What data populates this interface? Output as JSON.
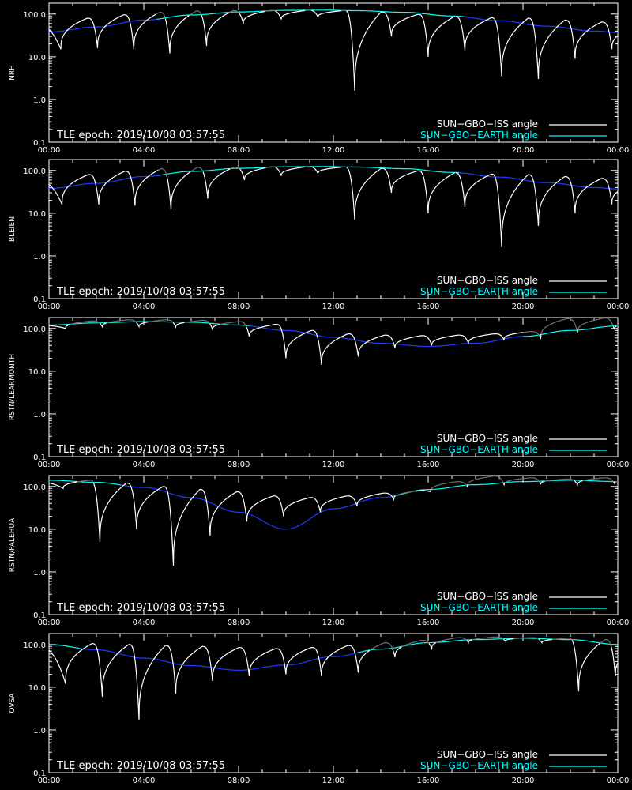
{
  "epoch_text": "TLE epoch: 2019/10/08 03:57:55",
  "legend": {
    "iss_label": "SUN−GBO−ISS angle",
    "earth_label": "SUN−GBO−EARTH angle"
  },
  "colors": {
    "background": "#000000",
    "axis": "#ffffff",
    "iss_day": "#ffffff",
    "iss_night": "#707070",
    "earth_legend": "#00ffff",
    "earth_day": "#00ffff",
    "earth_night": "#1e3cff"
  },
  "chart_data": [
    {
      "type": "line",
      "ylabel": "NRH",
      "yscale": "log",
      "ylim": [
        0.1,
        180
      ],
      "xlim_hours": [
        0,
        24
      ],
      "x_ticks": [
        "00:00",
        "04:00",
        "08:00",
        "12:00",
        "16:00",
        "20:00",
        "00:00"
      ],
      "y_ticks": [
        "0.1",
        "1.0",
        "10.0",
        "100.0"
      ],
      "series": [
        {
          "name": "SUN−GBO−EARTH angle",
          "x_hours": [
            0,
            2,
            4,
            6,
            8,
            10,
            11.5,
            13,
            15,
            17,
            19,
            21,
            23,
            24
          ],
          "y_deg": [
            38,
            50,
            72,
            95,
            112,
            122,
            124,
            120,
            110,
            90,
            70,
            52,
            40,
            37
          ],
          "visible_range_hours": [
            4.5,
            17.5
          ]
        },
        {
          "name": "SUN−GBO−ISS angle",
          "dips": [
            {
              "x_hour": 0.5,
              "min_deg": 15
            },
            {
              "x_hour": 2.05,
              "min_deg": 16
            },
            {
              "x_hour": 3.58,
              "min_deg": 15
            },
            {
              "x_hour": 5.1,
              "min_deg": 12
            },
            {
              "x_hour": 6.65,
              "min_deg": 18
            },
            {
              "x_hour": 8.2,
              "min_deg": 60
            },
            {
              "x_hour": 9.8,
              "min_deg": 75
            },
            {
              "x_hour": 11.35,
              "min_deg": 85
            },
            {
              "x_hour": 12.9,
              "min_deg": 1.6
            },
            {
              "x_hour": 14.45,
              "min_deg": 30
            },
            {
              "x_hour": 16.0,
              "min_deg": 10
            },
            {
              "x_hour": 17.55,
              "min_deg": 14
            },
            {
              "x_hour": 19.1,
              "min_deg": 3.5
            },
            {
              "x_hour": 20.65,
              "min_deg": 3
            },
            {
              "x_hour": 22.2,
              "min_deg": 9
            },
            {
              "x_hour": 23.75,
              "min_deg": 15
            }
          ],
          "peaks_deg": [
            68,
            80,
            96,
            110,
            118,
            120,
            122,
            123,
            121,
            112,
            98,
            88,
            82,
            80,
            72,
            65,
            60
          ]
        }
      ]
    },
    {
      "type": "line",
      "ylabel": "BLEIEN",
      "yscale": "log",
      "ylim": [
        0.1,
        180
      ],
      "xlim_hours": [
        0,
        24
      ],
      "x_ticks": [
        "00:00",
        "04:00",
        "08:00",
        "12:00",
        "16:00",
        "20:00",
        "00:00"
      ],
      "y_ticks": [
        "0.1",
        "1.0",
        "10.0",
        "100.0"
      ],
      "series": [
        {
          "name": "SUN−GBO−EARTH angle",
          "x_hours": [
            0,
            2,
            4,
            6,
            8,
            10,
            11.5,
            13,
            15,
            17,
            19,
            21,
            23,
            24
          ],
          "y_deg": [
            38,
            50,
            72,
            95,
            112,
            122,
            124,
            120,
            110,
            90,
            70,
            52,
            40,
            37
          ],
          "visible_range_hours": [
            4.6,
            17.3
          ]
        },
        {
          "name": "SUN−GBO−ISS angle",
          "dips": [
            {
              "x_hour": 0.55,
              "min_deg": 16
            },
            {
              "x_hour": 2.1,
              "min_deg": 16
            },
            {
              "x_hour": 3.63,
              "min_deg": 15
            },
            {
              "x_hour": 5.15,
              "min_deg": 12
            },
            {
              "x_hour": 6.7,
              "min_deg": 22
            },
            {
              "x_hour": 8.25,
              "min_deg": 60
            },
            {
              "x_hour": 9.8,
              "min_deg": 75
            },
            {
              "x_hour": 11.35,
              "min_deg": 85
            },
            {
              "x_hour": 12.9,
              "min_deg": 7
            },
            {
              "x_hour": 14.45,
              "min_deg": 30
            },
            {
              "x_hour": 16.0,
              "min_deg": 10
            },
            {
              "x_hour": 17.55,
              "min_deg": 14
            },
            {
              "x_hour": 19.1,
              "min_deg": 1.6
            },
            {
              "x_hour": 20.65,
              "min_deg": 5
            },
            {
              "x_hour": 22.2,
              "min_deg": 10
            },
            {
              "x_hour": 23.75,
              "min_deg": 16
            }
          ],
          "peaks_deg": [
            68,
            80,
            96,
            110,
            118,
            120,
            122,
            123,
            121,
            112,
            98,
            88,
            82,
            80,
            72,
            65,
            60
          ]
        }
      ]
    },
    {
      "type": "line",
      "ylabel": "RSTN/LEARMONTH",
      "yscale": "log",
      "ylim": [
        0.1,
        180
      ],
      "xlim_hours": [
        0,
        24
      ],
      "x_ticks": [
        "00:00",
        "04:00",
        "08:00",
        "12:00",
        "16:00",
        "20:00",
        "00:00"
      ],
      "y_ticks": [
        "0.1",
        "1.0",
        "10.0",
        "100.0"
      ],
      "series": [
        {
          "name": "SUN−GBO−EARTH angle",
          "x_hours": [
            0,
            2,
            4,
            6,
            8,
            10,
            12,
            14,
            16,
            18,
            20,
            22,
            24
          ],
          "y_deg": [
            120,
            135,
            145,
            140,
            120,
            90,
            62,
            45,
            38,
            45,
            65,
            90,
            115
          ],
          "visible_range_hours": [
            0,
            8.4
          ],
          "visible_range_hours_2": [
            20.0,
            24
          ]
        },
        {
          "name": "SUN−GBO−ISS angle",
          "dips": [
            {
              "x_hour": 0.7,
              "min_deg": 100
            },
            {
              "x_hour": 2.25,
              "min_deg": 110
            },
            {
              "x_hour": 3.8,
              "min_deg": 110
            },
            {
              "x_hour": 5.35,
              "min_deg": 108
            },
            {
              "x_hour": 6.9,
              "min_deg": 95
            },
            {
              "x_hour": 8.45,
              "min_deg": 65
            },
            {
              "x_hour": 10.0,
              "min_deg": 20
            },
            {
              "x_hour": 11.5,
              "min_deg": 14
            },
            {
              "x_hour": 13.05,
              "min_deg": 22
            },
            {
              "x_hour": 14.6,
              "min_deg": 35
            },
            {
              "x_hour": 16.15,
              "min_deg": 40
            },
            {
              "x_hour": 17.7,
              "min_deg": 45
            },
            {
              "x_hour": 19.2,
              "min_deg": 55
            },
            {
              "x_hour": 20.75,
              "min_deg": 60
            },
            {
              "x_hour": 22.3,
              "min_deg": 80
            },
            {
              "x_hour": 23.85,
              "min_deg": 95
            }
          ],
          "peaks_deg": [
            120,
            150,
            160,
            160,
            155,
            145,
            125,
            90,
            75,
            70,
            68,
            70,
            75,
            85,
            170,
            175,
            150
          ]
        }
      ]
    },
    {
      "type": "line",
      "ylabel": "RSTN/PALEHUA",
      "yscale": "log",
      "ylim": [
        0.1,
        180
      ],
      "xlim_hours": [
        0,
        24
      ],
      "x_ticks": [
        "00:00",
        "04:00",
        "08:00",
        "12:00",
        "16:00",
        "20:00",
        "00:00"
      ],
      "y_ticks": [
        "0.1",
        "1.0",
        "10.0",
        "100.0"
      ],
      "series": [
        {
          "name": "SUN−GBO−EARTH angle",
          "x_hours": [
            0,
            2,
            4,
            6,
            8,
            10,
            12,
            14,
            16,
            18,
            20,
            22,
            24
          ],
          "y_deg": [
            140,
            125,
            95,
            55,
            25,
            10,
            30,
            55,
            85,
            110,
            130,
            140,
            130
          ],
          "visible_range_hours": [
            0,
            3.0
          ],
          "visible_range_hours_2": [
            14.5,
            24
          ]
        },
        {
          "name": "SUN−GBO−ISS angle",
          "dips": [
            {
              "x_hour": 0.6,
              "min_deg": 90
            },
            {
              "x_hour": 2.15,
              "min_deg": 5
            },
            {
              "x_hour": 3.7,
              "min_deg": 10
            },
            {
              "x_hour": 5.25,
              "min_deg": 1.4
            },
            {
              "x_hour": 6.8,
              "min_deg": 7
            },
            {
              "x_hour": 8.35,
              "min_deg": 15
            },
            {
              "x_hour": 9.9,
              "min_deg": 20
            },
            {
              "x_hour": 11.45,
              "min_deg": 25
            },
            {
              "x_hour": 13.0,
              "min_deg": 35
            },
            {
              "x_hour": 14.55,
              "min_deg": 50
            },
            {
              "x_hour": 16.1,
              "min_deg": 75
            },
            {
              "x_hour": 17.65,
              "min_deg": 100
            },
            {
              "x_hour": 19.2,
              "min_deg": 110
            },
            {
              "x_hour": 20.75,
              "min_deg": 115
            },
            {
              "x_hour": 22.3,
              "min_deg": 110
            },
            {
              "x_hour": 23.85,
              "min_deg": 120
            }
          ],
          "peaks_deg": [
            130,
            140,
            120,
            100,
            85,
            75,
            60,
            55,
            60,
            70,
            80,
            130,
            175,
            160,
            150,
            160,
            145
          ]
        }
      ]
    },
    {
      "type": "line",
      "ylabel": "OVSA",
      "yscale": "log",
      "ylim": [
        0.1,
        180
      ],
      "xlim_hours": [
        0,
        24
      ],
      "x_ticks": [
        "00:00",
        "04:00",
        "08:00",
        "12:00",
        "16:00",
        "20:00",
        "00:00"
      ],
      "y_ticks": [
        "0.1",
        "1.0",
        "10.0",
        "100.0"
      ],
      "series": [
        {
          "name": "SUN−GBO−EARTH angle",
          "x_hours": [
            0,
            2,
            4,
            6,
            8,
            10,
            12,
            14,
            16,
            18,
            20,
            22,
            24
          ],
          "y_deg": [
            100,
            75,
            48,
            32,
            25,
            33,
            52,
            78,
            110,
            130,
            140,
            130,
            100
          ],
          "visible_range_hours": [
            0,
            1.3
          ],
          "visible_range_hours_2": [
            13.0,
            24
          ]
        },
        {
          "name": "SUN−GBO−ISS angle",
          "dips": [
            {
              "x_hour": 0.7,
              "min_deg": 12
            },
            {
              "x_hour": 2.25,
              "min_deg": 6
            },
            {
              "x_hour": 3.8,
              "min_deg": 1.7
            },
            {
              "x_hour": 5.35,
              "min_deg": 7
            },
            {
              "x_hour": 6.9,
              "min_deg": 14
            },
            {
              "x_hour": 8.45,
              "min_deg": 18
            },
            {
              "x_hour": 10.0,
              "min_deg": 20
            },
            {
              "x_hour": 11.5,
              "min_deg": 18
            },
            {
              "x_hour": 13.05,
              "min_deg": 22
            },
            {
              "x_hour": 14.6,
              "min_deg": 50
            },
            {
              "x_hour": 16.15,
              "min_deg": 80
            },
            {
              "x_hour": 17.7,
              "min_deg": 110
            },
            {
              "x_hour": 19.25,
              "min_deg": 120
            },
            {
              "x_hour": 20.8,
              "min_deg": 110
            },
            {
              "x_hour": 22.35,
              "min_deg": 8
            },
            {
              "x_hour": 23.9,
              "min_deg": 18
            }
          ],
          "peaks_deg": [
            100,
            105,
            100,
            95,
            90,
            85,
            80,
            85,
            95,
            110,
            125,
            145,
            150,
            145,
            140,
            130,
            120
          ]
        }
      ]
    }
  ]
}
